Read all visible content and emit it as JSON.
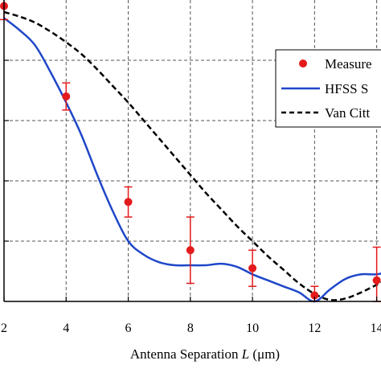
{
  "chart_data": {
    "type": "line",
    "xlabel": {
      "prefix": "Antenna Separation ",
      "var": "L",
      "unit": " (μm)"
    },
    "xlim": [
      2,
      15.2
    ],
    "ylim": [
      0,
      1
    ],
    "x_ticks": [
      2,
      4,
      6,
      8,
      10,
      12,
      14
    ],
    "x_tick_labels": [
      "2",
      "4",
      "6",
      "8",
      "10",
      "12",
      "14"
    ],
    "grid": true,
    "legend_position": "top-right",
    "colors": {
      "measured": "#e41a1c",
      "hfss": "#1f47c8",
      "van": "#000000"
    },
    "series": [
      {
        "name": "Measure",
        "style": "points-with-errorbars",
        "x": [
          2,
          4,
          6,
          8,
          10,
          12,
          14
        ],
        "y": [
          0.98,
          0.68,
          0.33,
          0.17,
          0.11,
          0.02,
          0.07
        ],
        "err": [
          0.045,
          0.045,
          0.05,
          0.11,
          0.06,
          0.03,
          0.11
        ]
      },
      {
        "name": "HFSS S",
        "style": "solid",
        "x": [
          2,
          2.5,
          3,
          3.5,
          4,
          4.5,
          5,
          5.5,
          6,
          6.5,
          7,
          7.5,
          8,
          8.5,
          9,
          9.5,
          10,
          10.5,
          11,
          11.5,
          12,
          12.5,
          13,
          13.5,
          14,
          14.5,
          15
        ],
        "y": [
          0.94,
          0.9,
          0.85,
          0.76,
          0.66,
          0.55,
          0.42,
          0.3,
          0.2,
          0.155,
          0.13,
          0.12,
          0.12,
          0.12,
          0.125,
          0.115,
          0.09,
          0.07,
          0.05,
          0.03,
          0.0,
          0.04,
          0.075,
          0.09,
          0.09,
          0.1,
          0.1
        ]
      },
      {
        "name": "Van Citt",
        "style": "dashed",
        "x": [
          2,
          2.5,
          3,
          3.5,
          4,
          4.5,
          5,
          5.5,
          6,
          6.5,
          7,
          7.5,
          8,
          8.5,
          9,
          9.5,
          10,
          10.5,
          11,
          11.5,
          12,
          12.5,
          13,
          13.5,
          14,
          14.5,
          15
        ],
        "y": [
          0.96,
          0.945,
          0.925,
          0.895,
          0.86,
          0.82,
          0.77,
          0.715,
          0.66,
          0.6,
          0.54,
          0.48,
          0.42,
          0.36,
          0.305,
          0.25,
          0.2,
          0.15,
          0.105,
          0.06,
          0.025,
          0.005,
          0.01,
          0.03,
          0.055,
          0.08,
          0.1
        ]
      }
    ]
  }
}
